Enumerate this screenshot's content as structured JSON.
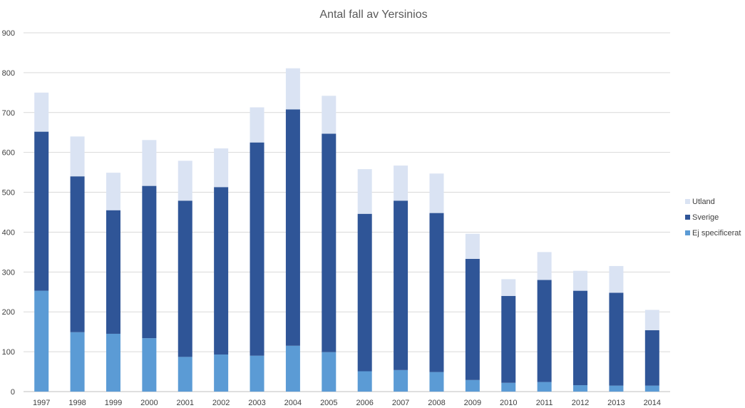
{
  "chart_data": {
    "type": "bar",
    "stacked": true,
    "title": "Antal fall av Yersinios",
    "xlabel": "",
    "ylabel": "",
    "ylim": [
      0,
      900
    ],
    "yticks": [
      0,
      100,
      200,
      300,
      400,
      500,
      600,
      700,
      800,
      900
    ],
    "grid": true,
    "legend_position": "right",
    "categories": [
      "1997",
      "1998",
      "1999",
      "2000",
      "2001",
      "2002",
      "2003",
      "2004",
      "2005",
      "2006",
      "2007",
      "2008",
      "2009",
      "2010",
      "2011",
      "2012",
      "2013",
      "2014"
    ],
    "series": [
      {
        "name": "Ej specificerat",
        "color": "#5b9bd5",
        "values": [
          253,
          149,
          145,
          134,
          87,
          93,
          90,
          115,
          99,
          51,
          54,
          49,
          29,
          22,
          24,
          16,
          15,
          15
        ]
      },
      {
        "name": "Sverige",
        "color": "#2f5597",
        "values": [
          399,
          391,
          310,
          382,
          392,
          420,
          535,
          593,
          548,
          395,
          425,
          399,
          304,
          218,
          256,
          237,
          233,
          139
        ]
      },
      {
        "name": "Utland",
        "color": "#dae3f3",
        "values": [
          98,
          100,
          94,
          115,
          100,
          97,
          88,
          103,
          95,
          112,
          88,
          99,
          63,
          42,
          70,
          50,
          67,
          51
        ]
      }
    ]
  }
}
